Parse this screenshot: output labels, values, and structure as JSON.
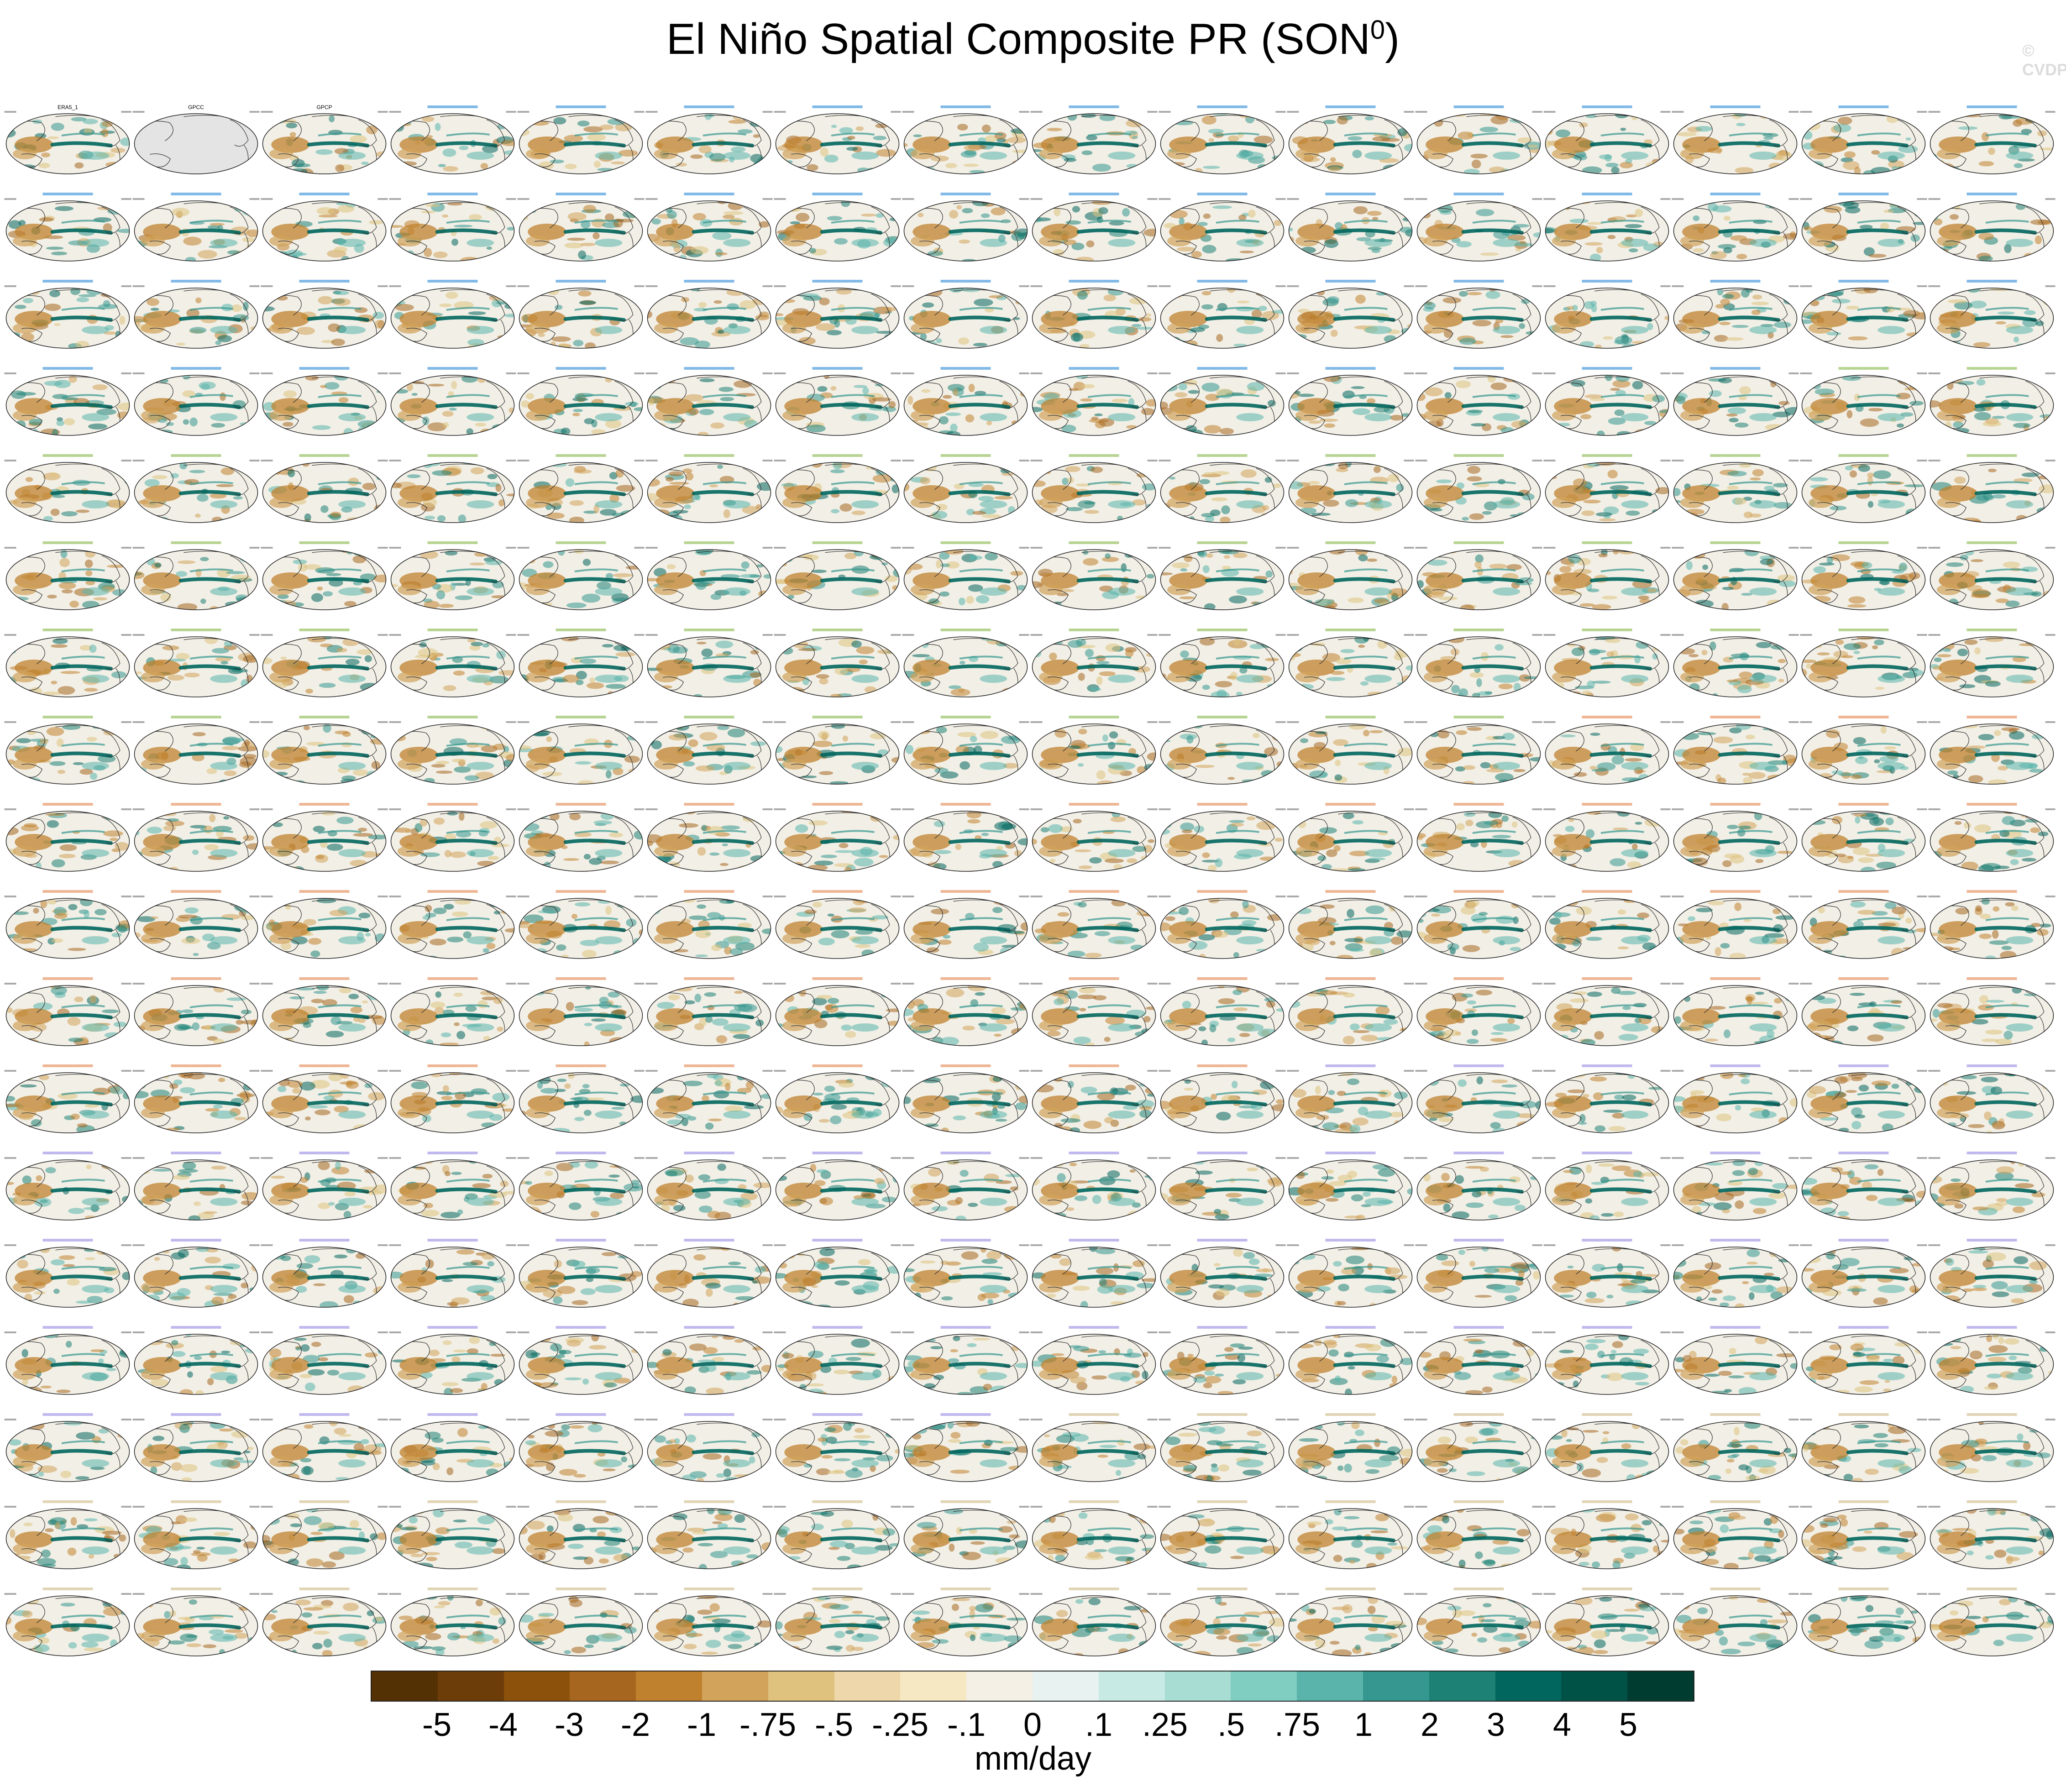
{
  "title": "El Niño Spatial Composite PR (SON",
  "title_sup": "0",
  "title_close": ")",
  "watermark": "© CVDP",
  "grid": {
    "rows": 19,
    "cols": 16,
    "n_panels": 301,
    "panels": [
      {
        "label": "ERA5_1",
        "empty": false,
        "label_color": "#000000"
      },
      {
        "label": "GPCC",
        "empty": true,
        "label_color": "#000000"
      },
      {
        "label": "GPCP",
        "empty": false,
        "label_color": "#000000"
      }
    ],
    "model_label_colors": [
      "#1a7fd4",
      "#7db13a",
      "#e07a3c",
      "#8a7fe0",
      "#c9b27a"
    ],
    "colors": {
      "ocean": "#f2efe6",
      "land": "#e4e4e4",
      "outline": "#333333"
    }
  },
  "colorbar": {
    "colors": [
      "#543005",
      "#6d3d09",
      "#8c510a",
      "#a6661f",
      "#bf812d",
      "#d2a35a",
      "#dfc27d",
      "#eed8ab",
      "#f6e8c3",
      "#f5f0e6",
      "#e8f2f1",
      "#c7eae5",
      "#a7ddd3",
      "#80cdc1",
      "#5ab4ac",
      "#35978f",
      "#1e8175",
      "#01665e",
      "#005247",
      "#003c30"
    ],
    "labels": [
      "-5",
      "-4",
      "-3",
      "-2",
      "-1",
      "-.75",
      "-.5",
      "-.25",
      "-.1",
      "0",
      ".1",
      ".25",
      ".5",
      ".75",
      "1",
      "2",
      "3",
      "4",
      "5"
    ],
    "units": "mm/day"
  }
}
